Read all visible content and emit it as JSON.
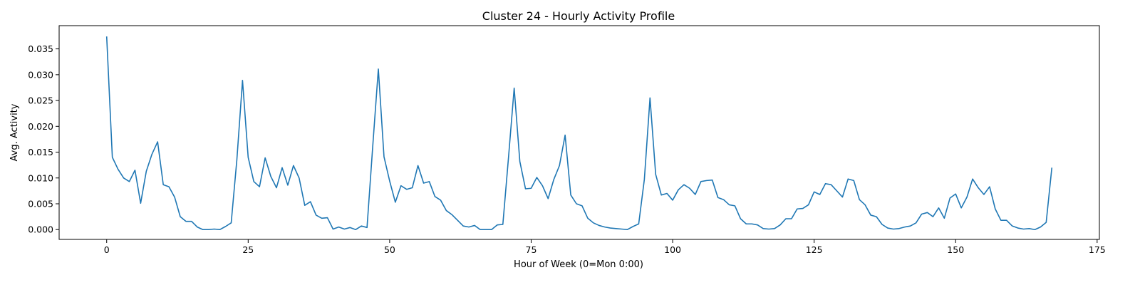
{
  "chart_data": {
    "type": "line",
    "title": "Cluster 24 - Hourly Activity Profile",
    "xlabel": "Hour of Week (0=Mon 0:00)",
    "ylabel": "Avg. Activity",
    "xlim": [
      -8.4,
      175.4
    ],
    "ylim": [
      -0.0019,
      0.0395
    ],
    "xticks": [
      0,
      25,
      50,
      75,
      100,
      125,
      150,
      175
    ],
    "xtick_labels": [
      "0",
      "25",
      "50",
      "75",
      "100",
      "125",
      "150",
      "175"
    ],
    "yticks": [
      0.0,
      0.005,
      0.01,
      0.015,
      0.02,
      0.025,
      0.03,
      0.035
    ],
    "ytick_labels": [
      "0.000",
      "0.005",
      "0.010",
      "0.015",
      "0.020",
      "0.025",
      "0.030",
      "0.035"
    ],
    "grid": false,
    "line_color": "#1f77b4",
    "series": [
      {
        "values": [
          0.0374,
          0.014,
          0.0117,
          0.01,
          0.0093,
          0.0115,
          0.0051,
          0.0113,
          0.0146,
          0.017,
          0.0087,
          0.0083,
          0.0063,
          0.0025,
          0.0016,
          0.0016,
          0.0005,
          0.0,
          0.0,
          0.0001,
          0.0,
          0.0006,
          0.0013,
          0.0135,
          0.0289,
          0.014,
          0.0093,
          0.0083,
          0.0139,
          0.0103,
          0.0081,
          0.012,
          0.0086,
          0.0124,
          0.01,
          0.0047,
          0.0054,
          0.0028,
          0.0022,
          0.0023,
          0.0001,
          0.0005,
          0.0001,
          0.0004,
          0.0,
          0.0007,
          0.0004,
          0.016,
          0.0311,
          0.0141,
          0.0094,
          0.0053,
          0.0085,
          0.0078,
          0.0081,
          0.0124,
          0.009,
          0.0093,
          0.0064,
          0.0057,
          0.0037,
          0.0029,
          0.0018,
          0.0007,
          0.0005,
          0.0008,
          0.0,
          0.0,
          0.0,
          0.0009,
          0.001,
          0.014,
          0.0274,
          0.0132,
          0.0079,
          0.008,
          0.0101,
          0.0085,
          0.006,
          0.0097,
          0.0124,
          0.0183,
          0.0067,
          0.005,
          0.0046,
          0.0022,
          0.0013,
          0.0008,
          0.0005,
          0.0003,
          0.0002,
          0.0001,
          0.0,
          0.0006,
          0.0011,
          0.0097,
          0.0255,
          0.0107,
          0.0067,
          0.007,
          0.0057,
          0.0077,
          0.0087,
          0.008,
          0.0068,
          0.0093,
          0.0095,
          0.0096,
          0.0062,
          0.0058,
          0.0048,
          0.0046,
          0.0021,
          0.0011,
          0.0011,
          0.0009,
          0.0002,
          0.0001,
          0.0002,
          0.0009,
          0.0021,
          0.0021,
          0.004,
          0.0041,
          0.0048,
          0.0073,
          0.0068,
          0.0089,
          0.0087,
          0.0075,
          0.0063,
          0.0098,
          0.0095,
          0.0058,
          0.0048,
          0.0028,
          0.0025,
          0.001,
          0.0003,
          0.0001,
          0.0002,
          0.0005,
          0.0007,
          0.0013,
          0.003,
          0.0033,
          0.0025,
          0.0042,
          0.0022,
          0.0061,
          0.0069,
          0.0042,
          0.0063,
          0.0098,
          0.0081,
          0.0068,
          0.0083,
          0.004,
          0.0018,
          0.0018,
          0.0007,
          0.0003,
          0.0001,
          0.0002,
          0.0,
          0.0005,
          0.0014,
          0.012
        ]
      }
    ]
  }
}
